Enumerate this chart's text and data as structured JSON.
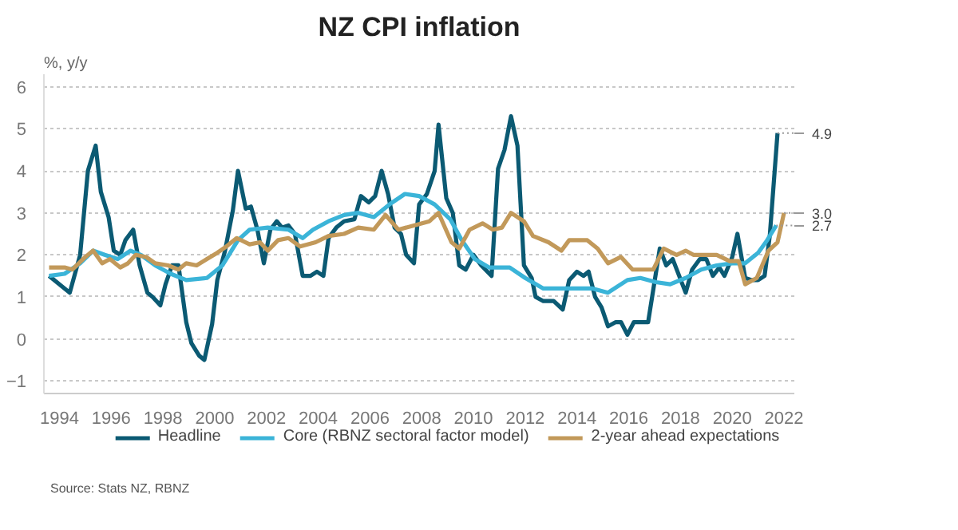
{
  "chart_data": {
    "type": "line",
    "title": "NZ CPI inflation",
    "ylabel": "%, y/y",
    "xlim": [
      1993.4,
      2022.4
    ],
    "xticks": [
      1994,
      1996,
      1998,
      2000,
      2002,
      2004,
      2006,
      2008,
      2010,
      2012,
      2014,
      2016,
      2018,
      2020,
      2022
    ],
    "ylim": [
      -1.3,
      6.3
    ],
    "yticks": [
      -1,
      0,
      1,
      2,
      3,
      4,
      5,
      6
    ],
    "grid": "y",
    "legend": "bottom",
    "line_style": "solid",
    "annotations": [
      {
        "text": "4.9",
        "x": 2021.75,
        "y": 4.9
      },
      {
        "text": "3.0",
        "x": 2022.0,
        "y": 3.0
      },
      {
        "text": "2.7",
        "x": 2021.7,
        "y": 2.7
      },
      "Source: Stats NZ, RBNZ"
    ],
    "series": [
      {
        "name": "Headline",
        "color": "#0b5a73",
        "x": [
          1993.6,
          1994.0,
          1994.4,
          1994.8,
          1995.1,
          1995.4,
          1995.6,
          1995.9,
          1996.1,
          1996.35,
          1996.55,
          1996.85,
          1997.1,
          1997.4,
          1997.6,
          1997.9,
          1998.1,
          1998.35,
          1998.6,
          1998.9,
          1999.1,
          1999.4,
          1999.6,
          1999.9,
          2000.1,
          2000.4,
          2000.7,
          2000.9,
          2001.2,
          2001.4,
          2001.65,
          2001.9,
          2002.15,
          2002.4,
          2002.6,
          2002.85,
          2003.1,
          2003.4,
          2003.7,
          2003.95,
          2004.2,
          2004.4,
          2004.7,
          2005.0,
          2005.4,
          2005.65,
          2005.95,
          2006.2,
          2006.45,
          2006.7,
          2006.95,
          2007.2,
          2007.4,
          2007.7,
          2007.9,
          2008.2,
          2008.5,
          2008.65,
          2008.95,
          2009.2,
          2009.45,
          2009.7,
          2010.0,
          2010.3,
          2010.7,
          2010.95,
          2011.2,
          2011.45,
          2011.7,
          2011.95,
          2012.25,
          2012.4,
          2012.7,
          2013.1,
          2013.45,
          2013.7,
          2014.0,
          2014.25,
          2014.45,
          2014.7,
          2014.95,
          2015.2,
          2015.5,
          2015.7,
          2015.95,
          2016.2,
          2016.75,
          2017.2,
          2017.45,
          2017.7,
          2017.95,
          2018.2,
          2018.45,
          2018.75,
          2019.0,
          2019.25,
          2019.5,
          2019.7,
          2020.0,
          2020.2,
          2020.5,
          2020.75,
          2021.0,
          2021.25,
          2021.45,
          2021.75
        ],
        "values": [
          1.5,
          1.3,
          1.1,
          2.0,
          4.0,
          4.6,
          3.5,
          2.9,
          2.1,
          2.0,
          2.35,
          2.6,
          1.75,
          1.1,
          1.0,
          0.8,
          1.3,
          1.75,
          1.75,
          0.4,
          -0.1,
          -0.4,
          -0.5,
          0.35,
          1.4,
          2.1,
          3.05,
          4.0,
          3.1,
          3.15,
          2.6,
          1.8,
          2.6,
          2.8,
          2.65,
          2.7,
          2.5,
          1.5,
          1.5,
          1.6,
          1.5,
          2.4,
          2.65,
          2.8,
          2.85,
          3.4,
          3.25,
          3.4,
          4.0,
          3.45,
          2.65,
          2.5,
          2.0,
          1.8,
          3.2,
          3.45,
          4.0,
          5.1,
          3.35,
          3.0,
          1.75,
          1.65,
          2.0,
          1.75,
          1.5,
          4.05,
          4.5,
          5.3,
          4.6,
          1.75,
          1.45,
          1.0,
          0.9,
          0.9,
          0.7,
          1.4,
          1.6,
          1.5,
          1.6,
          1.0,
          0.75,
          0.3,
          0.4,
          0.4,
          0.1,
          0.4,
          0.4,
          2.15,
          1.75,
          1.9,
          1.5,
          1.1,
          1.65,
          1.9,
          1.9,
          1.5,
          1.7,
          1.5,
          1.95,
          2.5,
          1.45,
          1.4,
          1.4,
          1.5,
          2.45,
          4.9
        ]
      },
      {
        "name": "Core (RBNZ sectoral factor model)",
        "color": "#3bb4d8",
        "x": [
          1993.6,
          1994.2,
          1994.8,
          1995.3,
          1995.75,
          1996.25,
          1996.75,
          1997.15,
          1997.7,
          1998.3,
          1998.9,
          1999.7,
          2000.3,
          2000.9,
          2001.35,
          2002.05,
          2002.85,
          2003.4,
          2003.8,
          2004.4,
          2005.0,
          2005.55,
          2006.15,
          2006.75,
          2007.35,
          2007.9,
          2008.5,
          2009.1,
          2009.55,
          2010.05,
          2010.6,
          2011.4,
          2012.0,
          2012.7,
          2013.3,
          2014.6,
          2015.2,
          2015.95,
          2016.45,
          2017.05,
          2017.6,
          2018.2,
          2018.8,
          2019.4,
          2020.0,
          2020.5,
          2021.0,
          2021.35,
          2021.7
        ],
        "values": [
          1.5,
          1.55,
          1.8,
          2.1,
          2.0,
          1.9,
          2.1,
          2.0,
          1.75,
          1.55,
          1.4,
          1.45,
          1.75,
          2.35,
          2.6,
          2.65,
          2.6,
          2.4,
          2.6,
          2.8,
          2.95,
          3.0,
          2.9,
          3.2,
          3.45,
          3.4,
          3.2,
          2.85,
          2.35,
          1.9,
          1.7,
          1.7,
          1.45,
          1.2,
          1.2,
          1.2,
          1.1,
          1.4,
          1.45,
          1.35,
          1.3,
          1.45,
          1.65,
          1.75,
          1.8,
          1.8,
          2.05,
          2.35,
          2.7
        ]
      },
      {
        "name": "2-year ahead expectations",
        "color": "#c2995a",
        "x": [
          1993.6,
          1994.2,
          1994.5,
          1995.0,
          1995.3,
          1995.65,
          1995.95,
          1996.35,
          1996.65,
          1996.95,
          1997.35,
          1997.7,
          1998.2,
          1998.6,
          1998.9,
          1999.3,
          1999.7,
          2000.1,
          2000.45,
          2000.85,
          2001.35,
          2001.75,
          2002.05,
          2002.45,
          2002.85,
          2003.3,
          2003.9,
          2004.4,
          2005.0,
          2005.55,
          2006.15,
          2006.6,
          2007.1,
          2007.7,
          2008.3,
          2008.65,
          2009.15,
          2009.45,
          2009.85,
          2010.35,
          2010.75,
          2011.1,
          2011.45,
          2011.95,
          2012.3,
          2012.9,
          2013.4,
          2013.7,
          2014.4,
          2014.8,
          2015.2,
          2015.7,
          2016.15,
          2016.95,
          2017.35,
          2017.85,
          2018.2,
          2018.5,
          2019.4,
          2019.9,
          2020.25,
          2020.5,
          2020.95,
          2021.4,
          2021.75,
          2022.0
        ],
        "values": [
          1.7,
          1.7,
          1.65,
          1.95,
          2.1,
          1.8,
          1.9,
          1.7,
          1.8,
          2.0,
          1.95,
          1.8,
          1.75,
          1.65,
          1.8,
          1.75,
          1.9,
          2.05,
          2.2,
          2.4,
          2.25,
          2.3,
          2.1,
          2.35,
          2.4,
          2.2,
          2.3,
          2.45,
          2.5,
          2.65,
          2.6,
          2.95,
          2.6,
          2.7,
          2.8,
          3.0,
          2.3,
          2.15,
          2.6,
          2.75,
          2.6,
          2.65,
          3.0,
          2.8,
          2.45,
          2.3,
          2.1,
          2.35,
          2.35,
          2.15,
          1.8,
          1.95,
          1.65,
          1.65,
          2.15,
          2.0,
          2.1,
          2.0,
          2.0,
          1.85,
          1.85,
          1.3,
          1.45,
          2.1,
          2.3,
          3.0
        ]
      }
    ]
  }
}
